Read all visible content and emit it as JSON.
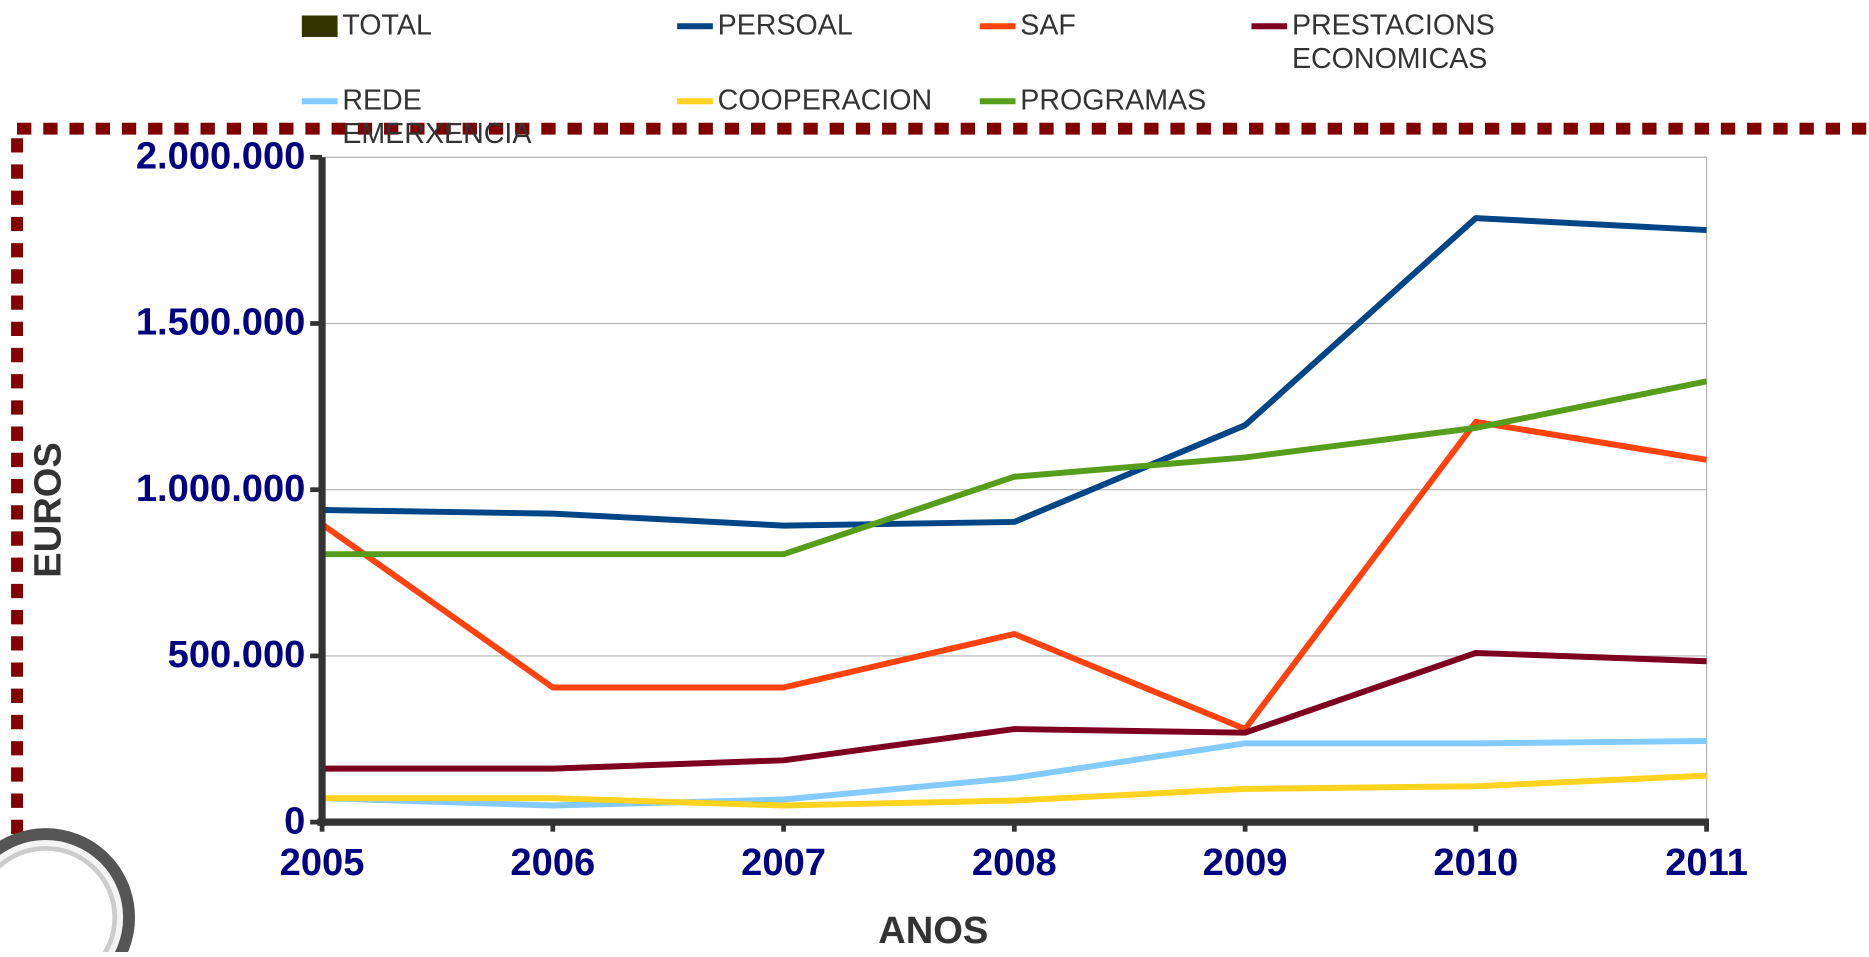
{
  "chart_data": {
    "type": "line",
    "x_label": "ANOS",
    "y_label": "EUROS",
    "categories": [
      "2005",
      "2006",
      "2007",
      "2008",
      "2009",
      "2010",
      "2011"
    ],
    "ylim": [
      0,
      2000000
    ],
    "yticks": [
      0,
      {
        "value": 500000,
        "label": "500.000"
      },
      {
        "value": 1000000,
        "label": "1.000.000"
      },
      {
        "value": 1500000,
        "label": "1.500.000"
      },
      {
        "value": 2000000,
        "label": "2.000.000"
      }
    ],
    "grid": true,
    "series": [
      {
        "name": "TOTAL",
        "color": "#333300",
        "values": [
          null,
          null,
          null,
          null,
          null,
          null,
          null
        ]
      },
      {
        "name": "PERSOAL",
        "color": "#004586",
        "values": [
          939000,
          928000,
          892000,
          903000,
          1194000,
          1817000,
          1781000
        ]
      },
      {
        "name": "SAF",
        "color": "#ff420e",
        "values": [
          896000,
          405000,
          405000,
          566000,
          280000,
          1204000,
          1090000
        ]
      },
      {
        "name": "PRESTACIONS ECONOMICAS",
        "color": "#7e0021",
        "values": [
          161000,
          161000,
          186000,
          280000,
          269000,
          509000,
          484000
        ]
      },
      {
        "name": "REDE EMERXENCIA",
        "color": "#83caff",
        "values": [
          72000,
          50000,
          68000,
          133000,
          237000,
          237000,
          244000
        ]
      },
      {
        "name": "COOPERACION",
        "color": "#ffd320",
        "values": [
          72000,
          72000,
          50000,
          65000,
          100000,
          108000,
          140000
        ]
      },
      {
        "name": "PROGRAMAS",
        "color": "#579d1c",
        "values": [
          806000,
          806000,
          806000,
          1039000,
          1097000,
          1186000,
          1326000
        ]
      }
    ]
  }
}
